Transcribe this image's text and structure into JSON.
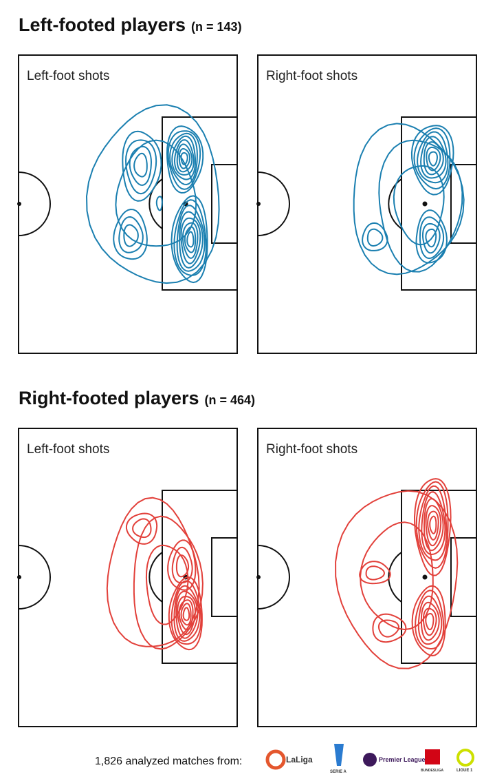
{
  "sections": [
    {
      "title": "Left-footed players",
      "count": "(n = 143)",
      "panels": [
        {
          "label": "Left-foot shots"
        },
        {
          "label": "Right-foot shots"
        }
      ]
    },
    {
      "title": "Right-footed players",
      "count": "(n = 464)",
      "panels": [
        {
          "label": "Left-foot shots"
        },
        {
          "label": "Right-foot shots"
        }
      ]
    }
  ],
  "footer": {
    "text": "1,826 analyzed matches from:",
    "leagues": [
      "LaLiga",
      "SERIE A",
      "Premier League",
      "BUNDESLIGA",
      "LIGUE 1"
    ]
  }
}
